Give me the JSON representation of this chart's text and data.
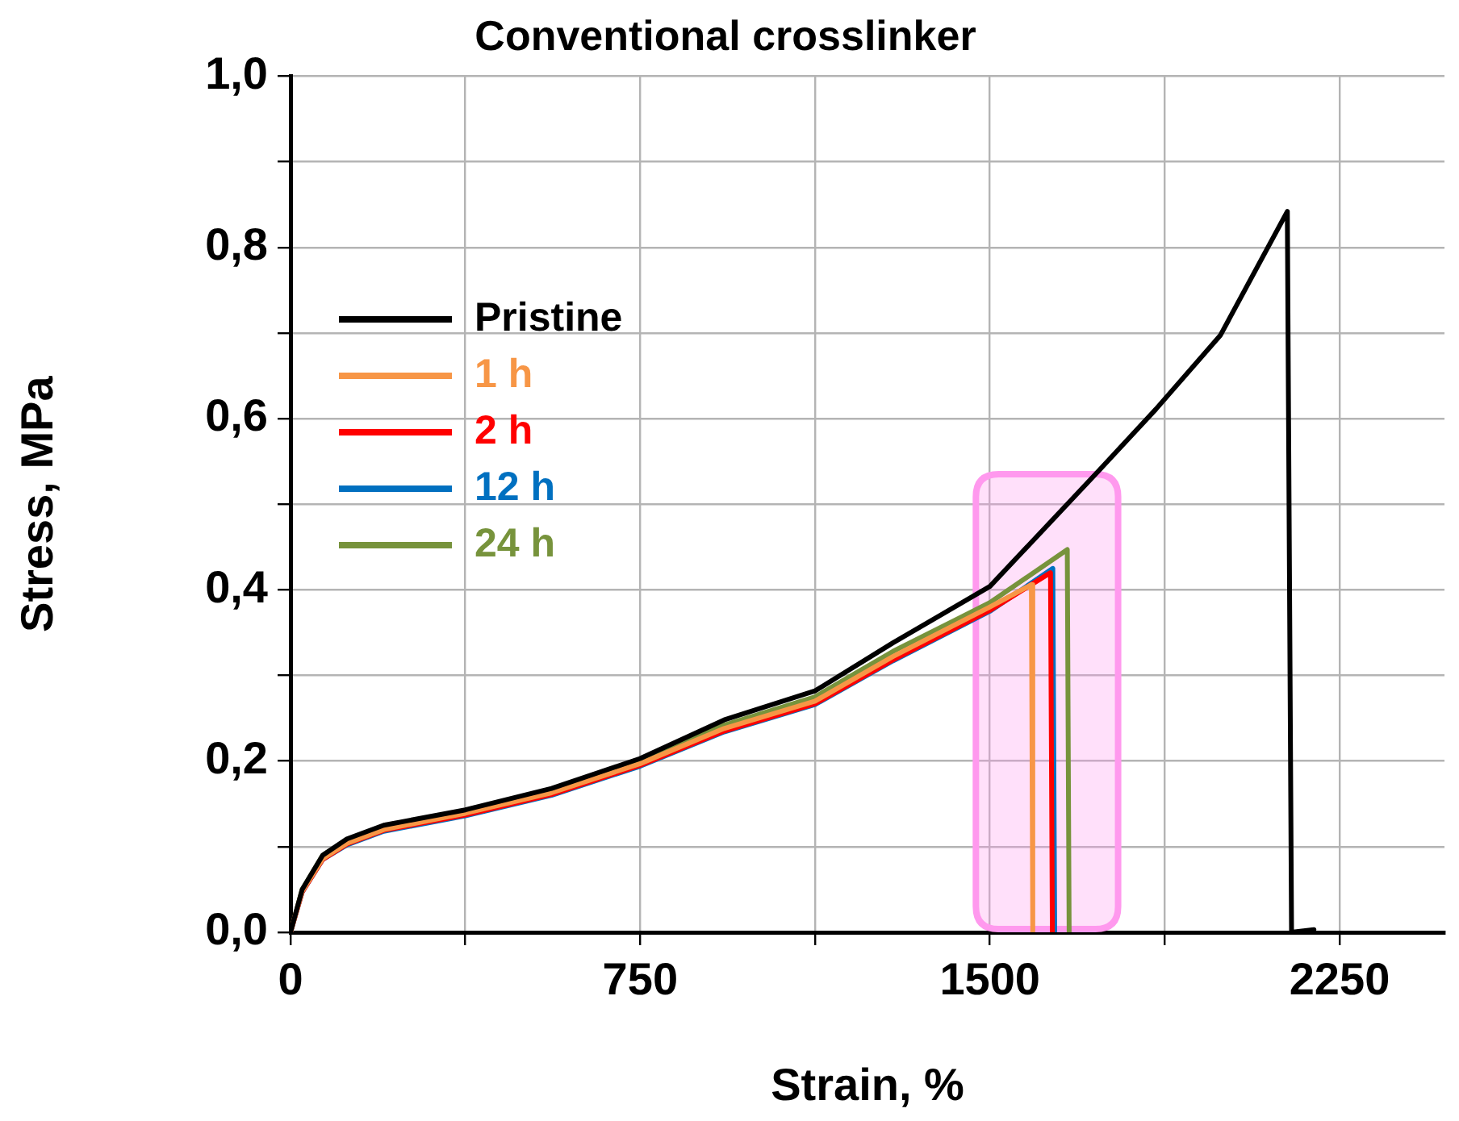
{
  "chart_data": {
    "type": "line",
    "title": "Conventional crosslinker",
    "xlabel": "Strain, %",
    "ylabel": "Stress, MPa",
    "xlim": [
      0,
      2475
    ],
    "xticks": [
      0,
      {
        "value": 375,
        "label": null
      },
      750,
      {
        "value": 1125,
        "label": null
      },
      1500,
      {
        "value": 1875,
        "label": null
      },
      2250
    ],
    "ylim": [
      0,
      1
    ],
    "yticks": [
      {
        "value": 0,
        "label": "0,0"
      },
      {
        "value": 0.1,
        "label": null
      },
      {
        "value": 0.2,
        "label": "0,2"
      },
      {
        "value": 0.3,
        "label": null
      },
      {
        "value": 0.4,
        "label": "0,4"
      },
      {
        "value": 0.5,
        "label": null
      },
      {
        "value": 0.6,
        "label": "0,6"
      },
      {
        "value": 0.7,
        "label": null
      },
      {
        "value": 0.8,
        "label": "0,8"
      },
      {
        "value": 0.9,
        "label": null
      },
      {
        "value": 1,
        "label": "1,0"
      }
    ],
    "grid": true,
    "legend": "top left",
    "line_style": "solid",
    "bands": [
      {
        "axis": "x",
        "from": 1470,
        "to": 1775,
        "color": "#ff99ee"
      }
    ],
    "series": [
      {
        "name": "Pristine",
        "color": "#000000",
        "x": [
          0,
          25,
          69,
          121,
          200,
          375,
          560,
          750,
          930,
          1125,
          1292,
          1500,
          1735,
          1856,
          1994,
          2138,
          2147,
          2195
        ],
        "values": [
          0,
          0.05,
          0.09,
          0.109,
          0.125,
          0.143,
          0.168,
          0.203,
          0.248,
          0.282,
          0.338,
          0.404,
          0.54,
          0.611,
          0.697,
          0.842,
          0,
          0.003
        ]
      },
      {
        "name": "1 h",
        "color": "#f79646",
        "x": [
          0,
          25,
          69,
          121,
          200,
          375,
          560,
          750,
          930,
          1125,
          1292,
          1500,
          1589,
          1592
        ],
        "values": [
          0,
          0.048,
          0.086,
          0.104,
          0.12,
          0.139,
          0.163,
          0.197,
          0.238,
          0.27,
          0.322,
          0.38,
          0.406,
          0
        ]
      },
      {
        "name": "2 h",
        "color": "#ff0000",
        "x": [
          0,
          25,
          69,
          121,
          200,
          375,
          560,
          750,
          930,
          1125,
          1292,
          1500,
          1630,
          1634
        ],
        "values": [
          0,
          0.047,
          0.085,
          0.103,
          0.119,
          0.137,
          0.161,
          0.195,
          0.235,
          0.267,
          0.318,
          0.376,
          0.42,
          0
        ]
      },
      {
        "name": "12 h",
        "color": "#0070c0",
        "x": [
          0,
          25,
          69,
          121,
          200,
          375,
          560,
          750,
          930,
          1125,
          1292,
          1500,
          1635,
          1639
        ],
        "values": [
          0,
          0.047,
          0.085,
          0.102,
          0.118,
          0.136,
          0.16,
          0.194,
          0.234,
          0.266,
          0.317,
          0.375,
          0.425,
          0
        ]
      },
      {
        "name": "24 h",
        "color": "#77933c",
        "x": [
          0,
          25,
          69,
          121,
          200,
          375,
          560,
          750,
          930,
          1125,
          1292,
          1500,
          1666,
          1670
        ],
        "values": [
          0,
          0.05,
          0.09,
          0.108,
          0.124,
          0.142,
          0.166,
          0.2,
          0.242,
          0.275,
          0.328,
          0.385,
          0.447,
          0
        ]
      }
    ]
  }
}
